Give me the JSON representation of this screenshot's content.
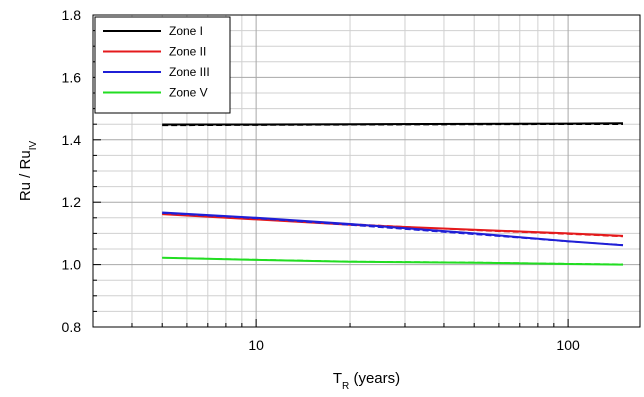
{
  "chart_data": {
    "type": "line",
    "x_scale": "log",
    "xlim": [
      3,
      170
    ],
    "ylim": [
      0.8,
      1.8
    ],
    "y_ticks": [
      "0.8",
      "1.0",
      "1.2",
      "1.4",
      "1.6",
      "1.8"
    ],
    "x_ticks": [
      "10",
      "100"
    ],
    "xlabel_main": "T",
    "xlabel_sub": "R",
    "xlabel_rest": " (years)",
    "ylabel_main": "Ru / Ru",
    "ylabel_sub": "IV",
    "grid": true,
    "legend_position": "top-left",
    "series": [
      {
        "name": "Zone I",
        "color": "#000000",
        "x": [
          5,
          10,
          20,
          50,
          100,
          150
        ],
        "y": [
          1.449,
          1.449,
          1.45,
          1.451,
          1.452,
          1.453
        ],
        "dashed_y": [
          1.446,
          1.447,
          1.448,
          1.449,
          1.45,
          1.45
        ]
      },
      {
        "name": "Zone II",
        "color": "#e41a1c",
        "x": [
          5,
          10,
          20,
          50,
          100,
          150
        ],
        "y": [
          1.162,
          1.145,
          1.128,
          1.112,
          1.1,
          1.092
        ],
        "dashed_y": [
          1.163,
          1.147,
          1.13,
          1.11,
          1.098,
          1.09
        ]
      },
      {
        "name": "Zone III",
        "color": "#1f1fd6",
        "x": [
          5,
          10,
          20,
          50,
          100,
          150
        ],
        "y": [
          1.167,
          1.15,
          1.13,
          1.1,
          1.075,
          1.062
        ],
        "dashed_y": [
          1.165,
          1.148,
          1.127,
          1.097,
          1.074,
          1.063
        ]
      },
      {
        "name": "Zone V",
        "color": "#22dd22",
        "x": [
          5,
          10,
          20,
          50,
          100,
          150
        ],
        "y": [
          1.022,
          1.015,
          1.009,
          1.006,
          1.002,
          1.0
        ],
        "dashed_y": [
          1.022,
          1.016,
          1.01,
          1.007,
          1.003,
          1.001
        ]
      }
    ]
  }
}
